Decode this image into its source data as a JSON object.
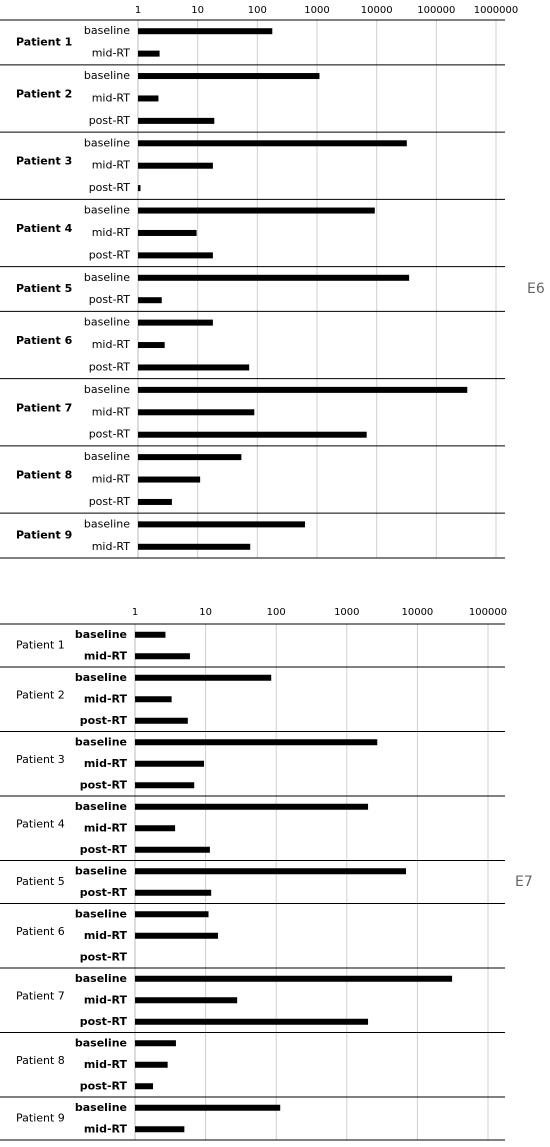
{
  "chart_data": [
    {
      "type": "bar",
      "label": "E6",
      "log_scale": true,
      "grid": true,
      "color": "#000000",
      "xlim": [
        1,
        1000000
      ],
      "xticks": [
        1,
        10,
        100,
        1000,
        10000,
        100000,
        1000000
      ],
      "groups": [
        {
          "name": "Patient 1",
          "categories": [
            "baseline",
            "mid-RT"
          ],
          "values": [
            178,
            2.3
          ]
        },
        {
          "name": "Patient 2",
          "categories": [
            "baseline",
            "mid-RT",
            "post-RT"
          ],
          "values": [
            1100,
            2.2,
            19
          ]
        },
        {
          "name": "Patient 3",
          "categories": [
            "baseline",
            "mid-RT",
            "post-RT"
          ],
          "values": [
            32000,
            18,
            1.1
          ]
        },
        {
          "name": "Patient 4",
          "categories": [
            "baseline",
            "mid-RT",
            "post-RT"
          ],
          "values": [
            9300,
            9.6,
            18
          ]
        },
        {
          "name": "Patient 5",
          "categories": [
            "baseline",
            "post-RT"
          ],
          "values": [
            35000,
            2.5
          ]
        },
        {
          "name": "Patient 6",
          "categories": [
            "baseline",
            "mid-RT",
            "post-RT"
          ],
          "values": [
            18,
            2.8,
            73
          ]
        },
        {
          "name": "Patient 7",
          "categories": [
            "baseline",
            "mid-RT",
            "post-RT"
          ],
          "values": [
            330000,
            89,
            6800
          ]
        },
        {
          "name": "Patient 8",
          "categories": [
            "baseline",
            "mid-RT",
            "post-RT"
          ],
          "values": [
            54,
            11,
            3.7
          ]
        },
        {
          "name": "Patient 9",
          "categories": [
            "baseline",
            "mid-RT"
          ],
          "values": [
            630,
            76
          ]
        }
      ]
    },
    {
      "type": "bar",
      "label": "E7",
      "log_scale": true,
      "grid": true,
      "color": "#000000",
      "xlim": [
        1,
        100000
      ],
      "xticks": [
        1,
        10,
        100,
        1000,
        10000,
        100000
      ],
      "groups": [
        {
          "name": "Patient 1",
          "categories": [
            "baseline",
            "mid-RT"
          ],
          "values": [
            2.7,
            6.0
          ]
        },
        {
          "name": "Patient 2",
          "categories": [
            "baseline",
            "mid-RT",
            "post-RT"
          ],
          "values": [
            85,
            3.3,
            5.6
          ]
        },
        {
          "name": "Patient 3",
          "categories": [
            "baseline",
            "mid-RT",
            "post-RT"
          ],
          "values": [
            2700,
            9.5,
            6.9
          ]
        },
        {
          "name": "Patient 4",
          "categories": [
            "baseline",
            "mid-RT",
            "post-RT"
          ],
          "values": [
            2000,
            3.7,
            11.5
          ]
        },
        {
          "name": "Patient 5",
          "categories": [
            "baseline",
            "post-RT"
          ],
          "values": [
            6900,
            12
          ]
        },
        {
          "name": "Patient 6",
          "categories": [
            "baseline",
            "mid-RT",
            "post-RT"
          ],
          "values": [
            11,
            15,
            null
          ]
        },
        {
          "name": "Patient 7",
          "categories": [
            "baseline",
            "mid-RT",
            "post-RT"
          ],
          "values": [
            31000,
            28,
            2000
          ]
        },
        {
          "name": "Patient 8",
          "categories": [
            "baseline",
            "mid-RT",
            "post-RT"
          ],
          "values": [
            3.8,
            2.9,
            1.8
          ]
        },
        {
          "name": "Patient 9",
          "categories": [
            "baseline",
            "mid-RT"
          ],
          "values": [
            114,
            5.0
          ]
        }
      ]
    }
  ]
}
